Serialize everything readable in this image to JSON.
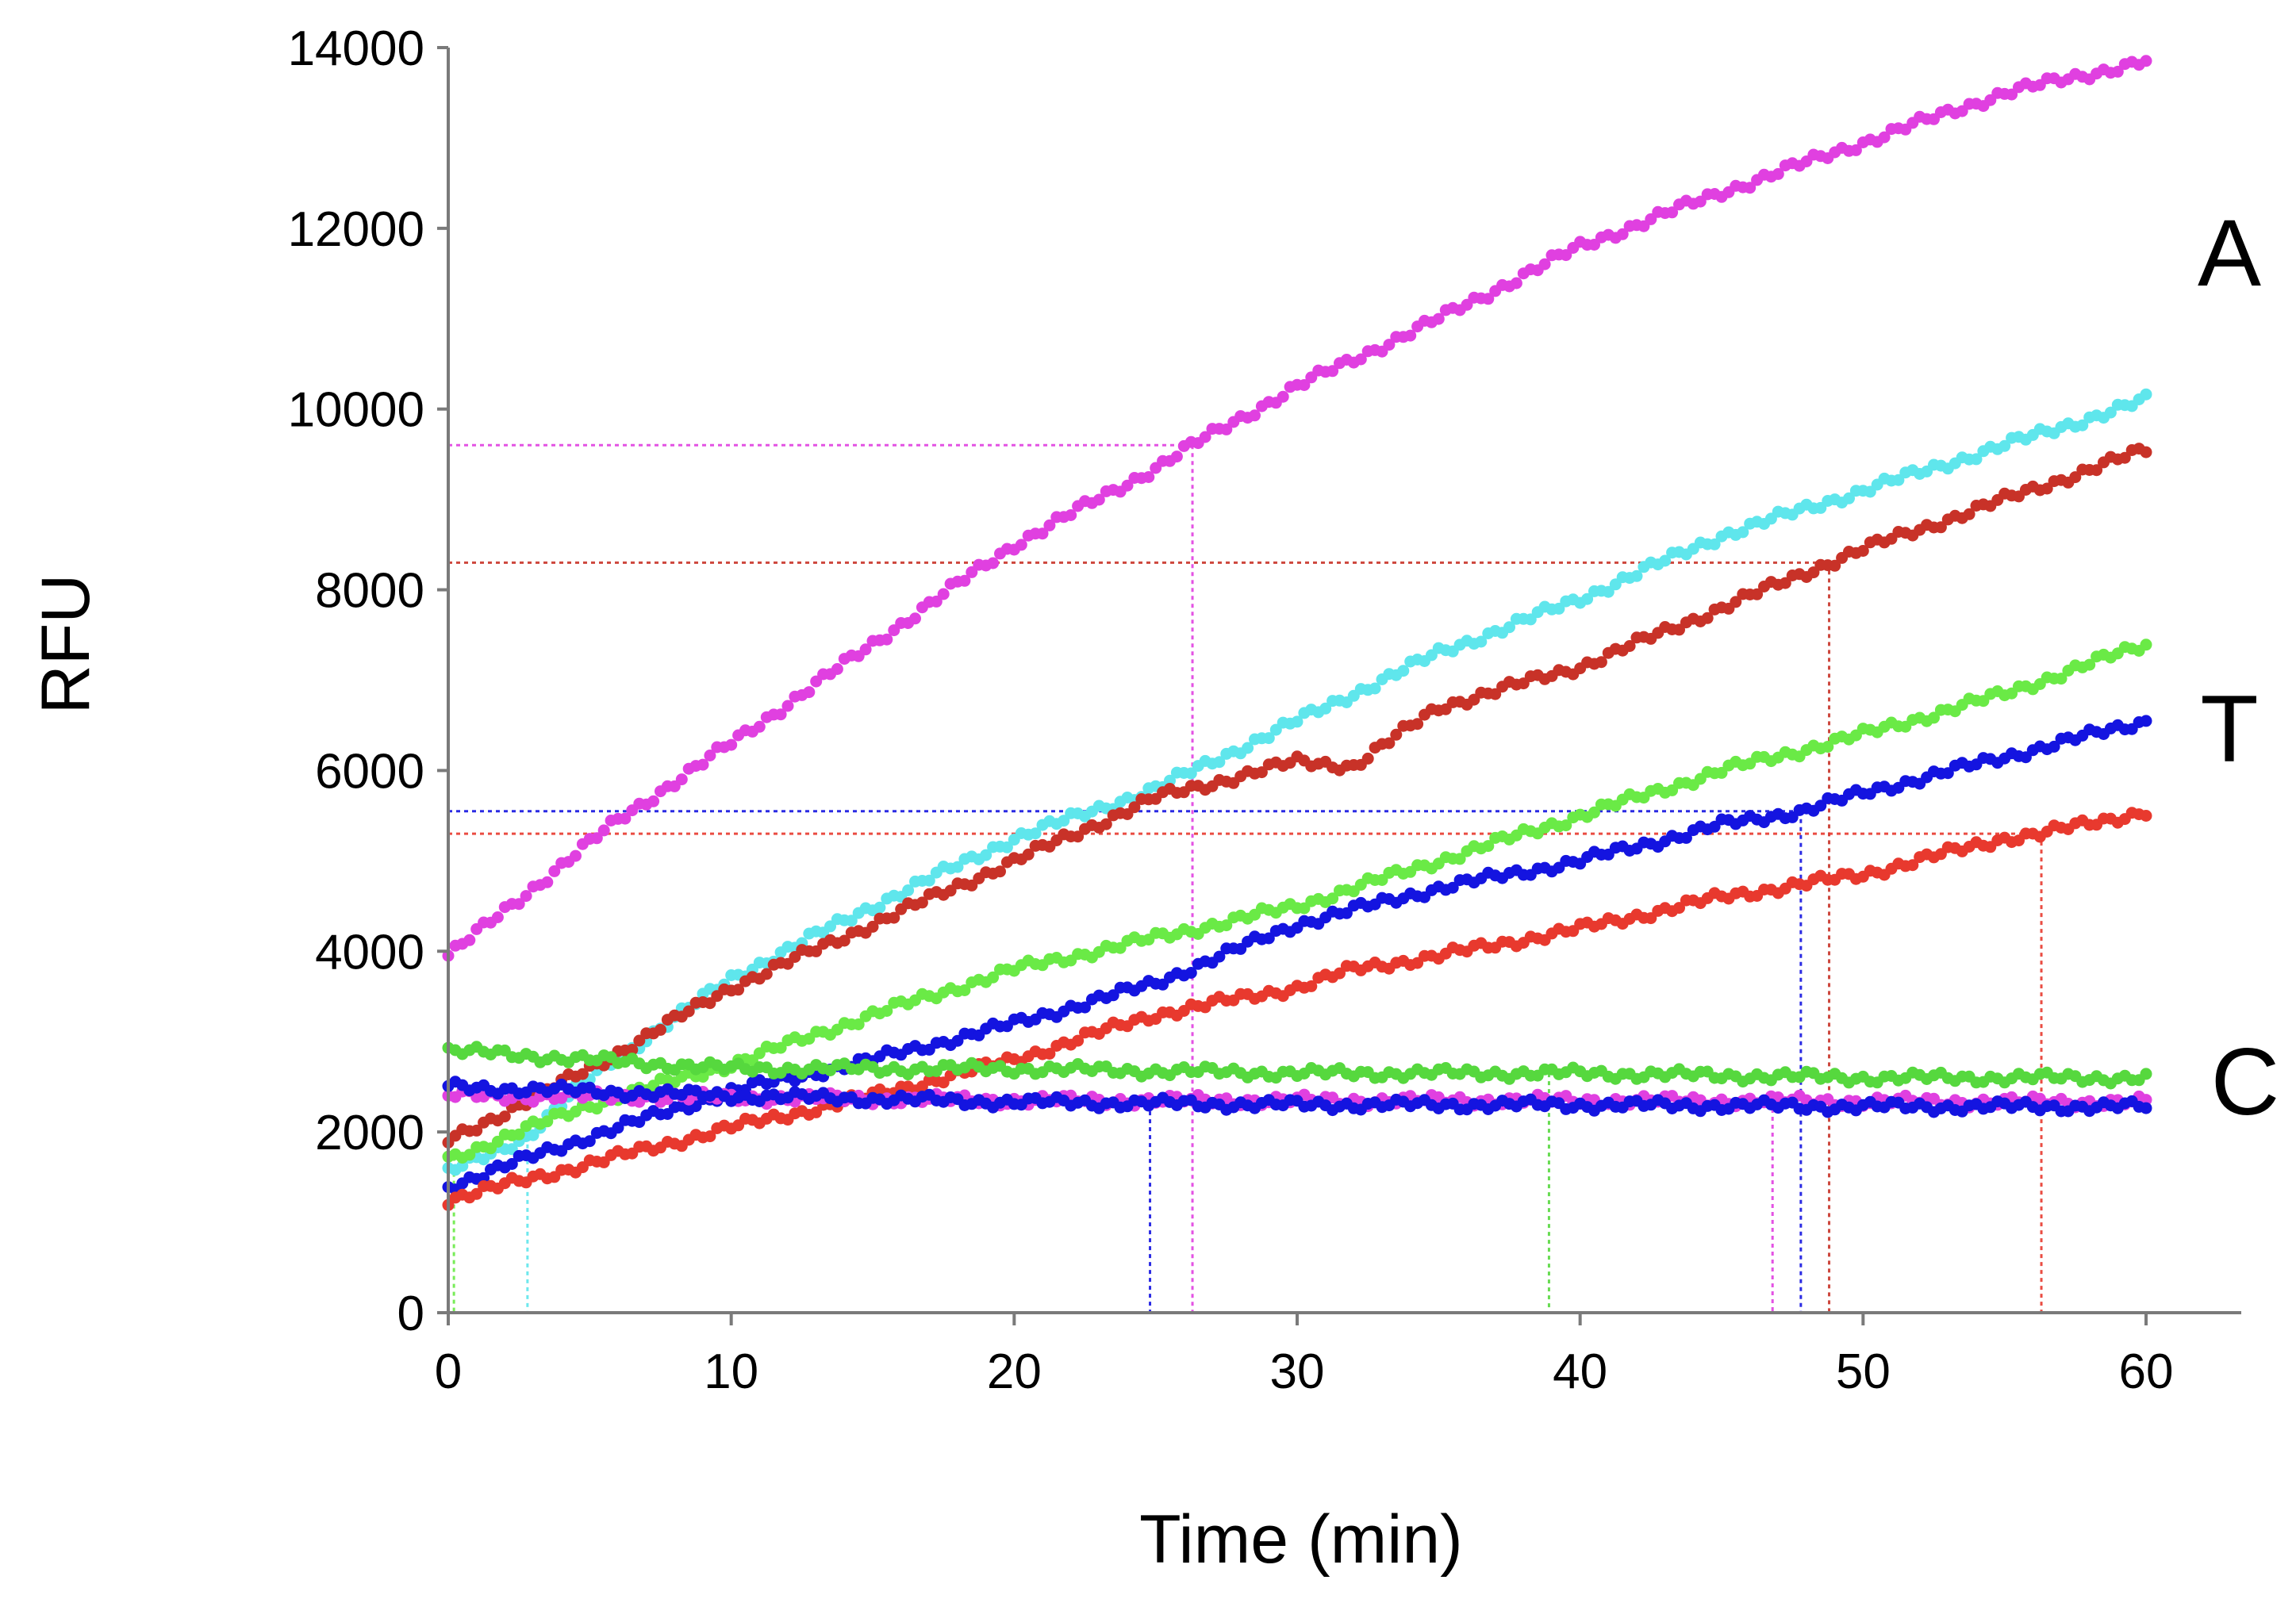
{
  "chart_data": {
    "type": "scatter",
    "title": "",
    "xlabel": "Time (min)",
    "ylabel": "RFU",
    "xlim": [
      0,
      60
    ],
    "ylim": [
      0,
      14000
    ],
    "x_ticks": [
      "0",
      "10",
      "20",
      "30",
      "40",
      "50",
      "60"
    ],
    "y_ticks": [
      "0",
      "2000",
      "4000",
      "6000",
      "8000",
      "10000",
      "12000",
      "14000"
    ],
    "grid": false,
    "legend": "none",
    "annotations": [
      "A",
      "T",
      "C"
    ],
    "series": [
      {
        "name": "A-magenta",
        "color": "#e040e0",
        "points": [
          [
            0,
            3950
          ],
          [
            3,
            4700
          ],
          [
            6,
            5450
          ],
          [
            10,
            6300
          ],
          [
            15,
            7400
          ],
          [
            20,
            8500
          ],
          [
            25,
            9350
          ],
          [
            26.3,
            9600
          ],
          [
            30,
            10250
          ],
          [
            35,
            11000
          ],
          [
            40,
            11800
          ],
          [
            45,
            12400
          ],
          [
            50,
            12950
          ],
          [
            55,
            13500
          ],
          [
            60,
            13850
          ]
        ],
        "threshold": {
          "y": 9600,
          "x": 26.3
        }
      },
      {
        "name": "A-cyan",
        "color": "#5fe6ec",
        "points": [
          [
            0,
            1550
          ],
          [
            2.8,
            1950
          ],
          [
            5,
            2600
          ],
          [
            10,
            3700
          ],
          [
            15,
            4500
          ],
          [
            20,
            5250
          ],
          [
            25,
            5800
          ],
          [
            30,
            6550
          ],
          [
            35,
            7300
          ],
          [
            40,
            7900
          ],
          [
            45,
            8600
          ],
          [
            50,
            9100
          ],
          [
            55,
            9600
          ],
          [
            60,
            10100
          ]
        ],
        "threshold": {
          "x": 2.8
        }
      },
      {
        "name": "A-red",
        "color": "#c83228",
        "points": [
          [
            0,
            1900
          ],
          [
            5,
            2700
          ],
          [
            10,
            3600
          ],
          [
            15,
            4300
          ],
          [
            20,
            5000
          ],
          [
            25,
            5700
          ],
          [
            30,
            6100
          ],
          [
            32,
            6050
          ],
          [
            35,
            6700
          ],
          [
            40,
            7150
          ],
          [
            45,
            7800
          ],
          [
            48.8,
            8300
          ],
          [
            50,
            8450
          ],
          [
            55,
            9000
          ],
          [
            60,
            9550
          ]
        ],
        "threshold": {
          "y": 8300,
          "x": 48.8
        }
      },
      {
        "name": "T-green",
        "color": "#6aea46",
        "points": [
          [
            0,
            1700
          ],
          [
            5,
            2300
          ],
          [
            10,
            2750
          ],
          [
            15,
            3300
          ],
          [
            20,
            3800
          ],
          [
            25,
            4150
          ],
          [
            30,
            4500
          ],
          [
            35,
            5000
          ],
          [
            40,
            5500
          ],
          [
            45,
            6000
          ],
          [
            50,
            6400
          ],
          [
            55,
            6850
          ],
          [
            60,
            7400
          ]
        ],
        "threshold": {
          "x": 0.2
        }
      },
      {
        "name": "T-blue",
        "color": "#1414e0",
        "points": [
          [
            0,
            1400
          ],
          [
            5,
            1950
          ],
          [
            10,
            2450
          ],
          [
            15,
            2800
          ],
          [
            20,
            3200
          ],
          [
            25,
            3650
          ],
          [
            30,
            4300
          ],
          [
            35,
            4700
          ],
          [
            40,
            5000
          ],
          [
            45,
            5400
          ],
          [
            47.8,
            5550
          ],
          [
            50,
            5750
          ],
          [
            55,
            6150
          ],
          [
            60,
            6550
          ]
        ],
        "threshold": {
          "y": 5550,
          "x": 47.8
        }
      },
      {
        "name": "T-red",
        "color": "#e8392e",
        "points": [
          [
            0,
            1250
          ],
          [
            5,
            1650
          ],
          [
            10,
            2050
          ],
          [
            15,
            2400
          ],
          [
            20,
            2800
          ],
          [
            25,
            3300
          ],
          [
            30,
            3600
          ],
          [
            32,
            3800
          ],
          [
            35,
            3950
          ],
          [
            40,
            4250
          ],
          [
            45,
            4600
          ],
          [
            50,
            4850
          ],
          [
            55,
            5250
          ],
          [
            56.3,
            5300
          ],
          [
            60,
            5550
          ]
        ],
        "threshold": {
          "y": 5300,
          "x": 56.3
        }
      },
      {
        "name": "C-green",
        "color": "#56d83e",
        "points": [
          [
            0,
            2900
          ],
          [
            10,
            2700
          ],
          [
            20,
            2700
          ],
          [
            30,
            2650
          ],
          [
            40,
            2650
          ],
          [
            50,
            2600
          ],
          [
            60,
            2600
          ]
        ],
        "threshold": {
          "x": 38.9
        }
      },
      {
        "name": "C-magenta",
        "color": "#e040e0",
        "points": [
          [
            0,
            2400
          ],
          [
            10,
            2380
          ],
          [
            20,
            2350
          ],
          [
            30,
            2350
          ],
          [
            40,
            2350
          ],
          [
            50,
            2340
          ],
          [
            60,
            2330
          ]
        ],
        "threshold": {
          "x": 46.8
        }
      },
      {
        "name": "C-blue",
        "color": "#1414e0",
        "points": [
          [
            0,
            2500
          ],
          [
            10,
            2400
          ],
          [
            20,
            2330
          ],
          [
            30,
            2300
          ],
          [
            40,
            2300
          ],
          [
            50,
            2280
          ],
          [
            60,
            2280
          ]
        ],
        "threshold": {
          "x": 24.8
        }
      }
    ]
  }
}
